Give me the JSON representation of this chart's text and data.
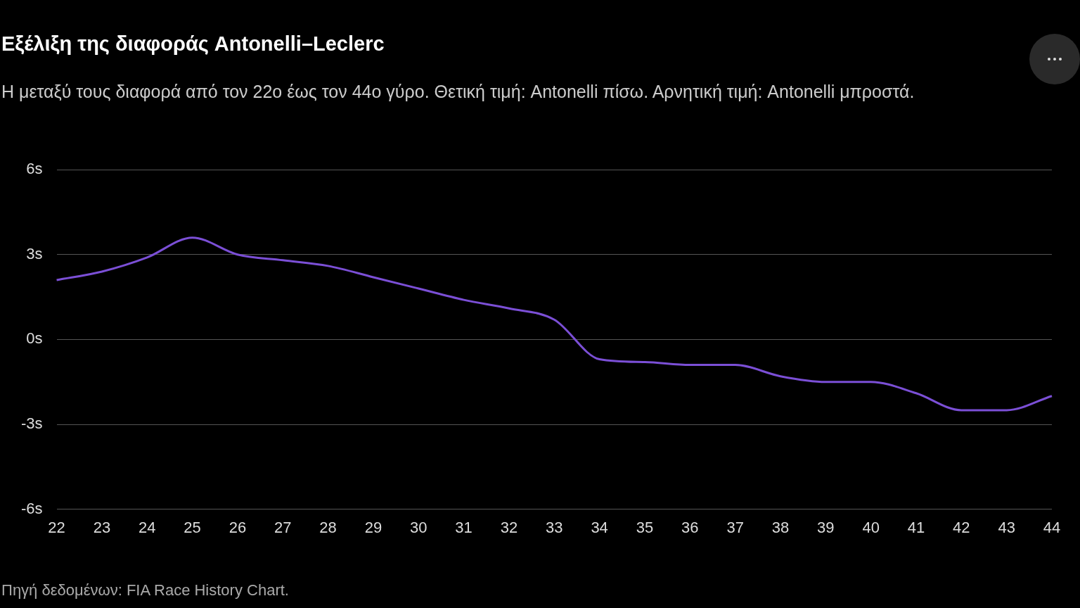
{
  "chart_data": {
    "type": "line",
    "title": "Εξέλιξη της διαφοράς Antonelli–Leclerc",
    "subtitle": "Η μεταξύ τους διαφορά από τον 22ο έως τον 44ο γύρο. Θετική τιμή: Antonelli πίσω. Αρνητική τιμή: Antonelli μπροστά.",
    "categories": [
      "22",
      "23",
      "24",
      "25",
      "26",
      "27",
      "28",
      "29",
      "30",
      "31",
      "32",
      "33",
      "34",
      "35",
      "36",
      "37",
      "38",
      "39",
      "40",
      "41",
      "42",
      "43",
      "44"
    ],
    "series": [
      {
        "color": "#7b4fd6",
        "values": [
          2.1,
          2.4,
          2.9,
          3.6,
          3.0,
          2.8,
          2.6,
          2.2,
          1.8,
          1.4,
          1.1,
          0.7,
          -0.7,
          -0.8,
          -0.9,
          -0.9,
          -1.3,
          -1.5,
          -1.5,
          -1.9,
          -2.5,
          -2.5,
          -2.0
        ]
      }
    ],
    "ylim": [
      -6,
      6
    ],
    "yticks": [
      {
        "value": -6,
        "label": "-6s"
      },
      {
        "value": -3,
        "label": "-3s"
      },
      {
        "value": 0,
        "label": "0s"
      },
      {
        "value": 3,
        "label": "3s"
      },
      {
        "value": 6,
        "label": "6s"
      }
    ],
    "grid": "y",
    "legend": false,
    "marker": "none",
    "line_style": "solid",
    "annotations": [
      "Πηγή δεδομένων: FIA Race History Chart."
    ]
  }
}
